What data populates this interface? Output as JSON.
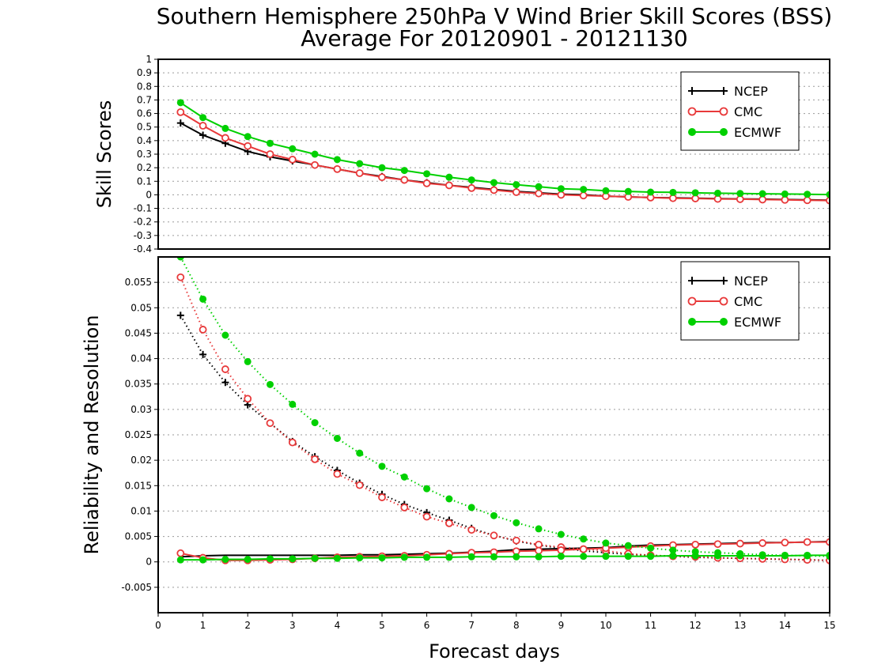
{
  "title_line1": "Southern Hemisphere 250hPa V Wind Brier Skill Scores (BSS)",
  "title_line2": "Average For 20120901 - 20121130",
  "xlabel": "Forecast days",
  "colors": {
    "NCEP": "#000000",
    "CMC": "#e8393a",
    "ECMWF": "#00d000"
  },
  "chart_data": [
    {
      "type": "line",
      "ylabel": "Skill Scores",
      "xlim": [
        0,
        15
      ],
      "ylim": [
        -0.4,
        1
      ],
      "x_ticks": [
        0,
        1,
        2,
        3,
        4,
        5,
        6,
        7,
        8,
        9,
        10,
        11,
        12,
        13,
        14,
        15
      ],
      "y_ticks": [
        "-0.4",
        "-0.3",
        "-0.2",
        "-0.1",
        "0",
        "0.1",
        "0.2",
        "0.3",
        "0.4",
        "0.5",
        "0.6",
        "0.7",
        "0.8",
        "0.9",
        "1"
      ],
      "legend": {
        "position": "top-right",
        "entries": [
          "NCEP",
          "CMC",
          "ECMWF"
        ]
      },
      "x": [
        0.5,
        1,
        1.5,
        2,
        2.5,
        3,
        3.5,
        4,
        4.5,
        5,
        5.5,
        6,
        6.5,
        7,
        7.5,
        8,
        8.5,
        9,
        9.5,
        10,
        10.5,
        11,
        11.5,
        12,
        12.5,
        13,
        13.5,
        14,
        14.5,
        15
      ],
      "series": [
        {
          "name": "NCEP",
          "marker": "plus",
          "line": "solid",
          "values": [
            0.53,
            0.44,
            0.38,
            0.32,
            0.28,
            0.25,
            0.22,
            0.19,
            0.16,
            0.135,
            0.11,
            0.09,
            0.07,
            0.055,
            0.04,
            0.025,
            0.015,
            0.005,
            0.0,
            -0.01,
            -0.015,
            -0.02,
            -0.022,
            -0.025,
            -0.028,
            -0.03,
            -0.032,
            -0.035,
            -0.037,
            -0.04
          ]
        },
        {
          "name": "CMC",
          "marker": "open-circle",
          "line": "solid",
          "values": [
            0.61,
            0.51,
            0.42,
            0.36,
            0.3,
            0.26,
            0.22,
            0.19,
            0.16,
            0.13,
            0.11,
            0.085,
            0.07,
            0.05,
            0.035,
            0.02,
            0.01,
            0.0,
            -0.005,
            -0.01,
            -0.015,
            -0.02,
            -0.025,
            -0.027,
            -0.03,
            -0.032,
            -0.035,
            -0.037,
            -0.04,
            -0.042
          ]
        },
        {
          "name": "ECMWF",
          "marker": "filled-circle",
          "line": "solid",
          "values": [
            0.68,
            0.57,
            0.49,
            0.43,
            0.38,
            0.34,
            0.3,
            0.26,
            0.23,
            0.2,
            0.18,
            0.155,
            0.13,
            0.11,
            0.09,
            0.075,
            0.06,
            0.045,
            0.04,
            0.03,
            0.025,
            0.02,
            0.018,
            0.015,
            0.012,
            0.01,
            0.008,
            0.006,
            0.004,
            0.002
          ]
        }
      ]
    },
    {
      "type": "line",
      "ylabel": "Reliability and Resolution",
      "xlim": [
        0,
        15
      ],
      "ylim": [
        -0.01,
        0.06
      ],
      "x_ticks": [
        0,
        1,
        2,
        3,
        4,
        5,
        6,
        7,
        8,
        9,
        10,
        11,
        12,
        13,
        14,
        15
      ],
      "y_ticks": [
        "-0.005",
        "0",
        "0.005",
        "0.01",
        "0.015",
        "0.02",
        "0.025",
        "0.03",
        "0.035",
        "0.04",
        "0.045",
        "0.05",
        "0.055"
      ],
      "legend": {
        "position": "top-right",
        "entries": [
          "NCEP",
          "CMC",
          "ECMWF"
        ]
      },
      "x": [
        0.5,
        1,
        1.5,
        2,
        2.5,
        3,
        3.5,
        4,
        4.5,
        5,
        5.5,
        6,
        6.5,
        7,
        7.5,
        8,
        8.5,
        9,
        9.5,
        10,
        10.5,
        11,
        11.5,
        12,
        12.5,
        13,
        13.5,
        14,
        14.5,
        15
      ],
      "series": [
        {
          "name": "NCEP",
          "component": "resolution",
          "marker": "plus",
          "line": "dotted",
          "values": [
            0.0485,
            0.0408,
            0.0353,
            0.0309,
            0.0273,
            0.0237,
            0.0207,
            0.018,
            0.0155,
            0.0133,
            0.0113,
            0.0097,
            0.0082,
            0.0066,
            0.0052,
            0.0041,
            0.0033,
            0.0027,
            0.0022,
            0.0018,
            0.0015,
            0.0013,
            0.0011,
            0.0009,
            0.0008,
            0.0007,
            0.0006,
            0.0005,
            0.0004,
            0.0003
          ]
        },
        {
          "name": "NCEP",
          "component": "reliability",
          "marker": "none",
          "line": "solid",
          "values": [
            0.001,
            0.0012,
            0.0013,
            0.0013,
            0.0013,
            0.0013,
            0.0013,
            0.0013,
            0.0014,
            0.0014,
            0.0015,
            0.0016,
            0.0017,
            0.0019,
            0.0021,
            0.0024,
            0.0025,
            0.0026,
            0.0027,
            0.0028,
            0.0031,
            0.0033,
            0.0034,
            0.0035,
            0.0036,
            0.0037,
            0.0038,
            0.0038,
            0.0039,
            0.004
          ]
        },
        {
          "name": "CMC",
          "component": "resolution",
          "marker": "open-circle",
          "line": "dotted",
          "values": [
            0.056,
            0.0457,
            0.0379,
            0.0321,
            0.0273,
            0.0235,
            0.0202,
            0.0173,
            0.0151,
            0.0127,
            0.0107,
            0.0089,
            0.0076,
            0.0063,
            0.0052,
            0.0042,
            0.0034,
            0.0029,
            0.0025,
            0.0022,
            0.0016,
            0.0013,
            0.0011,
            0.001,
            0.0008,
            0.0007,
            0.0006,
            0.0005,
            0.0004,
            0.0003
          ]
        },
        {
          "name": "CMC",
          "component": "reliability",
          "marker": "open-circle",
          "line": "solid",
          "values": [
            0.0017,
            0.0008,
            0.0003,
            0.0003,
            0.0004,
            0.0005,
            0.0007,
            0.0009,
            0.001,
            0.0011,
            0.0012,
            0.0014,
            0.0016,
            0.0018,
            0.0019,
            0.0021,
            0.0022,
            0.0023,
            0.0025,
            0.0027,
            0.0029,
            0.0031,
            0.0033,
            0.0034,
            0.0035,
            0.0036,
            0.0037,
            0.0038,
            0.0039,
            0.0039
          ]
        },
        {
          "name": "ECMWF",
          "component": "resolution",
          "marker": "filled-circle",
          "line": "dotted",
          "values": [
            0.06,
            0.0517,
            0.0446,
            0.0394,
            0.0349,
            0.031,
            0.0274,
            0.0243,
            0.0214,
            0.0188,
            0.0167,
            0.0144,
            0.0124,
            0.0107,
            0.0091,
            0.0077,
            0.0065,
            0.0054,
            0.0045,
            0.0037,
            0.0032,
            0.0027,
            0.0023,
            0.002,
            0.0018,
            0.0016,
            0.0014,
            0.0013,
            0.0012,
            0.0011
          ]
        },
        {
          "name": "ECMWF",
          "component": "reliability",
          "marker": "filled-circle",
          "line": "solid",
          "values": [
            0.0004,
            0.0004,
            0.0005,
            0.0005,
            0.0006,
            0.0006,
            0.0007,
            0.0007,
            0.0008,
            0.0008,
            0.0009,
            0.0009,
            0.0009,
            0.001,
            0.001,
            0.001,
            0.001,
            0.0011,
            0.0011,
            0.0011,
            0.0011,
            0.0011,
            0.0012,
            0.0012,
            0.0012,
            0.0012,
            0.0012,
            0.0012,
            0.0013,
            0.0013
          ]
        }
      ]
    }
  ]
}
